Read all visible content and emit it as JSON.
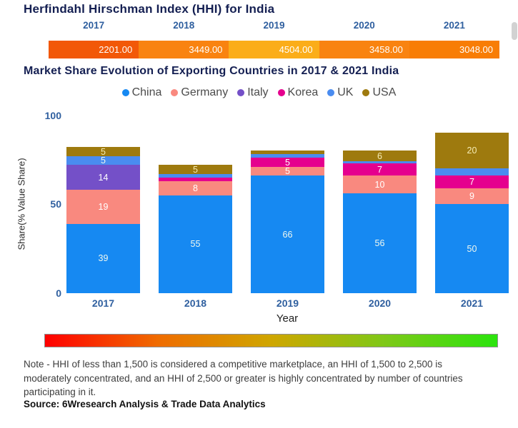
{
  "hhi": {
    "title": "Herfindahl Hirschman Index (HHI) for India",
    "segment_colors": [
      "#f25808",
      "#f98310",
      "#fbad19",
      "#f98310",
      "#f87d05"
    ]
  },
  "market_share": {
    "title": "Market Share Evolution of Exporting Countries in 2017 & 2021 India"
  },
  "chart_data": [
    {
      "type": "table",
      "title": "Herfindahl Hirschman Index (HHI) for India",
      "categories": [
        "2017",
        "2018",
        "2019",
        "2020",
        "2021"
      ],
      "values": [
        2201.0,
        3449.0,
        4504.0,
        3458.0,
        3048.0
      ]
    },
    {
      "type": "bar",
      "stacked": true,
      "title": "Market Share Evolution of Exporting Countries in 2017 & 2021 India",
      "categories": [
        "2017",
        "2018",
        "2019",
        "2020",
        "2021"
      ],
      "series": [
        {
          "name": "China",
          "color": "#1689f2",
          "label_color": "#eff8ef",
          "values": [
            39,
            55,
            66,
            56,
            50
          ]
        },
        {
          "name": "Germany",
          "color": "#f9897f",
          "label_color": "#ffffff",
          "values": [
            19,
            8,
            5,
            10,
            9
          ]
        },
        {
          "name": "Italy",
          "color": "#7450c8",
          "label_color": "#ffffff",
          "values": [
            14,
            0,
            0,
            0,
            0
          ]
        },
        {
          "name": "Korea",
          "color": "#e5008e",
          "label_color": "#ffffff",
          "values": [
            0,
            2,
            5,
            7,
            7
          ]
        },
        {
          "name": "UK",
          "color": "#4a8cf0",
          "label_color": "#eff8ef",
          "values": [
            5,
            2,
            2,
            1,
            4
          ]
        },
        {
          "name": "USA",
          "color": "#9e7a0e",
          "label_color": "#f6ecb4",
          "values": [
            5,
            5,
            2,
            6,
            20
          ]
        }
      ],
      "xlabel": "Year",
      "ylabel": "Share(% Value Share)",
      "yticks": [
        0,
        50,
        100
      ],
      "ylim": [
        0,
        100
      ],
      "label_min_value": 5,
      "legend_position": "top",
      "grid": false
    }
  ],
  "colors": {
    "scale_gradient_stops": [
      "#ff0000",
      "#ef6c00",
      "#cfa600",
      "#7fc818",
      "#2be40e"
    ]
  },
  "footer": {
    "note": "Note - HHI of less than 1,500 is considered a competitive marketplace, an HHI of 1,500 to 2,500 is moderately concentrated, and an HHI of 2,500 or greater is highly concentrated by number of countries participating in it.",
    "source": "Source: 6Wresearch Analysis & Trade Data Analytics"
  }
}
